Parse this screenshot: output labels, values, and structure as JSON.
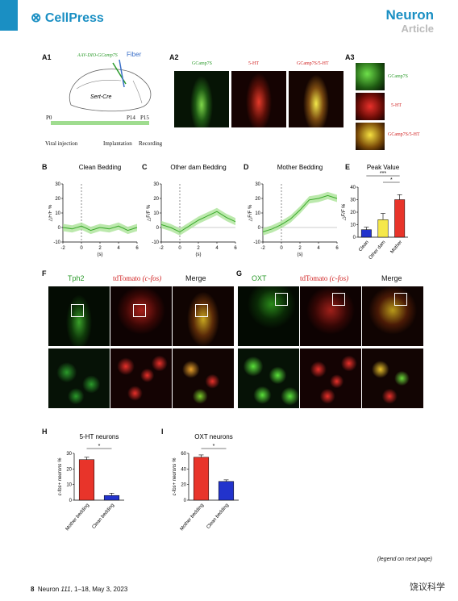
{
  "header": {
    "publisher": "CellPress",
    "journal": "Neuron",
    "article_type": "Article"
  },
  "footer": {
    "page": "8",
    "journal": "Neuron",
    "volume": "111",
    "pages": "1–18, May 3, 2023",
    "legend_note": "(legend on next page)",
    "watermark": "饶议科学"
  },
  "panelA1": {
    "label": "A1",
    "virus": "AAV-DIO-GCamp7S",
    "fiber": "Fiber",
    "mouse": "Sert-Cre",
    "timeline": {
      "p0": "P0",
      "p14": "P14",
      "p15": "P15",
      "e1": "Viral injection",
      "e2": "Implantation",
      "e3": "Recording"
    }
  },
  "panelA2": {
    "label": "A2",
    "c1": "GCamp7S",
    "c2": "5-HT",
    "c3": "GCamp7S/5-HT"
  },
  "panelA3": {
    "label": "A3",
    "c1": "GCamp7S",
    "c2": "5-HT",
    "c3": "GCamp7S/5-HT"
  },
  "traces": {
    "ylabel": "△F/F %",
    "xlabel": "(s)",
    "B": {
      "label": "B",
      "title": "Clean Bedding"
    },
    "C": {
      "label": "C",
      "title": "Other dam Bedding"
    },
    "D": {
      "label": "D",
      "title": "Mother Bedding"
    }
  },
  "panelE": {
    "label": "E",
    "title": "Peak Value",
    "ylabel": "△F/F %",
    "sig1": "***",
    "sig2": "*"
  },
  "panelF": {
    "label": "F",
    "c1": "Tph2",
    "c2a": "tdTomato ",
    "c2b": "(c-fos)",
    "c3": "Merge"
  },
  "panelG": {
    "label": "G",
    "c1": "OXT",
    "c2a": "tdTomato ",
    "c2b": "(c-fos)",
    "c3": "Merge"
  },
  "panelH": {
    "label": "H",
    "title": "5-HT neurons",
    "ylabel": "c-fos+ neurons %",
    "sig": "*"
  },
  "panelI": {
    "label": "I",
    "title": "OXT neurons",
    "ylabel": "c-fos+ neurons %",
    "sig": "*"
  },
  "chart_data": [
    {
      "id": "B",
      "type": "line",
      "title": "Clean Bedding",
      "xlabel": "(s)",
      "ylabel": "△F/F %",
      "xlim": [
        -2,
        6
      ],
      "ylim": [
        -10,
        30
      ],
      "xticks": [
        -2,
        0,
        2,
        4,
        6
      ],
      "yticks": [
        -10,
        0,
        10,
        20,
        30
      ],
      "x": [
        -2,
        -1,
        0,
        1,
        2,
        3,
        4,
        5,
        6
      ],
      "y": [
        0,
        -1,
        1,
        -2,
        0,
        -1,
        1,
        -2,
        0
      ]
    },
    {
      "id": "C",
      "type": "line",
      "title": "Other dam Bedding",
      "xlabel": "(s)",
      "ylabel": "△F/F %",
      "xlim": [
        -2,
        6
      ],
      "ylim": [
        -10,
        30
      ],
      "xticks": [
        -2,
        0,
        2,
        4,
        6
      ],
      "yticks": [
        -10,
        0,
        10,
        20,
        30
      ],
      "x": [
        -2,
        -1,
        0,
        1,
        2,
        3,
        4,
        5,
        6
      ],
      "y": [
        2,
        0,
        -3,
        1,
        5,
        8,
        11,
        7,
        4
      ]
    },
    {
      "id": "D",
      "type": "line",
      "title": "Mother Bedding",
      "xlabel": "(s)",
      "ylabel": "△F/F %",
      "xlim": [
        -2,
        6
      ],
      "ylim": [
        -10,
        30
      ],
      "xticks": [
        -2,
        0,
        2,
        4,
        6
      ],
      "yticks": [
        -10,
        0,
        10,
        20,
        30
      ],
      "x": [
        -2,
        -1,
        0,
        1,
        2,
        3,
        4,
        5,
        6
      ],
      "y": [
        -3,
        -1,
        2,
        6,
        12,
        19,
        20,
        22,
        20
      ]
    },
    {
      "id": "E",
      "type": "bar",
      "title": "Peak Value",
      "ylabel": "△F/F %",
      "ylim": [
        0,
        40
      ],
      "yticks": [
        0,
        10,
        20,
        30,
        40
      ],
      "categories": [
        "Clean",
        "Other dam",
        "Mother"
      ],
      "values": [
        6,
        14,
        30
      ],
      "errors": [
        2,
        5,
        4
      ],
      "colors": [
        "#2233cc",
        "#f5e84a",
        "#e8342a"
      ]
    },
    {
      "id": "H",
      "type": "bar",
      "title": "5-HT neurons",
      "ylabel": "c-fos+ neurons %",
      "ylim": [
        0,
        30
      ],
      "yticks": [
        0,
        10,
        20,
        30
      ],
      "categories": [
        "Mother bedding",
        "Clean bedding"
      ],
      "values": [
        26,
        3
      ],
      "errors": [
        1.5,
        1.5
      ],
      "colors": [
        "#e8342a",
        "#2233cc"
      ]
    },
    {
      "id": "I",
      "type": "bar",
      "title": "OXT neurons",
      "ylabel": "c-fos+ neurons %",
      "ylim": [
        0,
        60
      ],
      "yticks": [
        0,
        20,
        40,
        60
      ],
      "categories": [
        "Mother bedding",
        "Clean bedding"
      ],
      "values": [
        55,
        24
      ],
      "errors": [
        3,
        2
      ],
      "colors": [
        "#e8342a",
        "#2233cc"
      ]
    }
  ]
}
